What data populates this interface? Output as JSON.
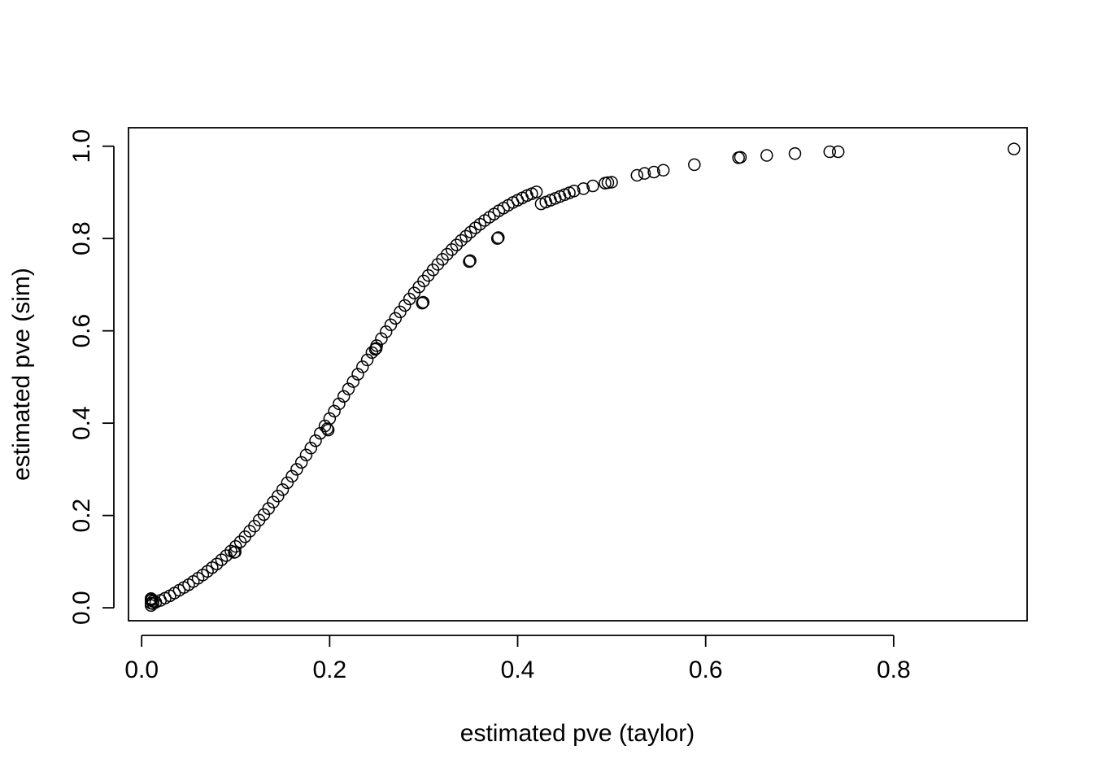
{
  "chart_data": {
    "type": "scatter",
    "title": "",
    "xlabel": "estimated pve (taylor)",
    "ylabel": "estimated pve (sim)",
    "xlim": [
      -0.014,
      0.942
    ],
    "ylim": [
      -0.028,
      1.04
    ],
    "x_ticks": [
      "0.0",
      "0.2",
      "0.4",
      "0.6",
      "0.8"
    ],
    "y_ticks": [
      "0.0",
      "0.2",
      "0.4",
      "0.6",
      "0.8",
      "1.0"
    ],
    "grid": false,
    "legend": "none",
    "marker": "open-circle",
    "points": [
      [
        0.01,
        0.005
      ],
      [
        0.01,
        0.01
      ],
      [
        0.01,
        0.016
      ],
      [
        0.01,
        0.02
      ],
      [
        0.012,
        0.009
      ],
      [
        0.012,
        0.014
      ],
      [
        0.011,
        0.018
      ],
      [
        0.015,
        0.012
      ],
      [
        0.02,
        0.016
      ],
      [
        0.025,
        0.021
      ],
      [
        0.03,
        0.026
      ],
      [
        0.035,
        0.032
      ],
      [
        0.04,
        0.038
      ],
      [
        0.045,
        0.044
      ],
      [
        0.05,
        0.05
      ],
      [
        0.055,
        0.057
      ],
      [
        0.06,
        0.064
      ],
      [
        0.065,
        0.071
      ],
      [
        0.07,
        0.079
      ],
      [
        0.075,
        0.087
      ],
      [
        0.08,
        0.095
      ],
      [
        0.085,
        0.104
      ],
      [
        0.09,
        0.113
      ],
      [
        0.095,
        0.123
      ],
      [
        0.1,
        0.133
      ],
      [
        0.105,
        0.143
      ],
      [
        0.11,
        0.154
      ],
      [
        0.115,
        0.166
      ],
      [
        0.12,
        0.177
      ],
      [
        0.125,
        0.19
      ],
      [
        0.13,
        0.202
      ],
      [
        0.135,
        0.215
      ],
      [
        0.14,
        0.229
      ],
      [
        0.145,
        0.242
      ],
      [
        0.15,
        0.256
      ],
      [
        0.155,
        0.271
      ],
      [
        0.16,
        0.285
      ],
      [
        0.165,
        0.3
      ],
      [
        0.17,
        0.315
      ],
      [
        0.175,
        0.331
      ],
      [
        0.18,
        0.346
      ],
      [
        0.185,
        0.362
      ],
      [
        0.19,
        0.378
      ],
      [
        0.195,
        0.394
      ],
      [
        0.2,
        0.41
      ],
      [
        0.205,
        0.426
      ],
      [
        0.21,
        0.442
      ],
      [
        0.215,
        0.458
      ],
      [
        0.22,
        0.474
      ],
      [
        0.225,
        0.49
      ],
      [
        0.23,
        0.506
      ],
      [
        0.235,
        0.522
      ],
      [
        0.24,
        0.537
      ],
      [
        0.245,
        0.553
      ],
      [
        0.25,
        0.568
      ],
      [
        0.255,
        0.583
      ],
      [
        0.26,
        0.598
      ],
      [
        0.265,
        0.613
      ],
      [
        0.27,
        0.627
      ],
      [
        0.275,
        0.641
      ],
      [
        0.28,
        0.655
      ],
      [
        0.285,
        0.669
      ],
      [
        0.29,
        0.682
      ],
      [
        0.295,
        0.695
      ],
      [
        0.3,
        0.708
      ],
      [
        0.305,
        0.72
      ],
      [
        0.31,
        0.732
      ],
      [
        0.315,
        0.744
      ],
      [
        0.32,
        0.755
      ],
      [
        0.325,
        0.766
      ],
      [
        0.33,
        0.776
      ],
      [
        0.335,
        0.786
      ],
      [
        0.34,
        0.796
      ],
      [
        0.345,
        0.805
      ],
      [
        0.35,
        0.814
      ],
      [
        0.355,
        0.823
      ],
      [
        0.36,
        0.831
      ],
      [
        0.365,
        0.839
      ],
      [
        0.37,
        0.846
      ],
      [
        0.375,
        0.853
      ],
      [
        0.38,
        0.86
      ],
      [
        0.385,
        0.866
      ],
      [
        0.39,
        0.872
      ],
      [
        0.395,
        0.878
      ],
      [
        0.4,
        0.883
      ],
      [
        0.405,
        0.888
      ],
      [
        0.41,
        0.893
      ],
      [
        0.415,
        0.897
      ],
      [
        0.42,
        0.901
      ],
      [
        0.0985,
        0.12
      ],
      [
        0.0995,
        0.121
      ],
      [
        0.1985,
        0.385
      ],
      [
        0.1975,
        0.388
      ],
      [
        0.2485,
        0.56
      ],
      [
        0.2495,
        0.562
      ],
      [
        0.2985,
        0.66
      ],
      [
        0.2995,
        0.662
      ],
      [
        0.3485,
        0.75
      ],
      [
        0.3495,
        0.752
      ],
      [
        0.3785,
        0.8
      ],
      [
        0.3795,
        0.802
      ],
      [
        0.425,
        0.875
      ],
      [
        0.43,
        0.879
      ],
      [
        0.435,
        0.883
      ],
      [
        0.44,
        0.887
      ],
      [
        0.445,
        0.891
      ],
      [
        0.45,
        0.895
      ],
      [
        0.455,
        0.899
      ],
      [
        0.46,
        0.903
      ],
      [
        0.47,
        0.908
      ],
      [
        0.48,
        0.914
      ],
      [
        0.493,
        0.92
      ],
      [
        0.496,
        0.921
      ],
      [
        0.5,
        0.922
      ],
      [
        0.527,
        0.937
      ],
      [
        0.535,
        0.941
      ],
      [
        0.545,
        0.944
      ],
      [
        0.555,
        0.948
      ],
      [
        0.588,
        0.96
      ],
      [
        0.635,
        0.975
      ],
      [
        0.637,
        0.976
      ],
      [
        0.665,
        0.98
      ],
      [
        0.695,
        0.984
      ],
      [
        0.732,
        0.988
      ],
      [
        0.741,
        0.988
      ],
      [
        0.928,
        0.994
      ]
    ]
  }
}
